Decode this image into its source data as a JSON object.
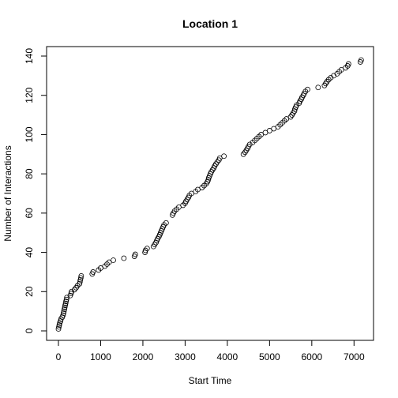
{
  "chart_data": {
    "type": "scatter",
    "title": "Location 1",
    "xlabel": "Start Time",
    "ylabel": "Number of Interactions",
    "xlim": [
      0,
      7200
    ],
    "ylim": [
      0,
      140
    ],
    "xticks": [
      0,
      1000,
      2000,
      3000,
      4000,
      5000,
      6000,
      7000
    ],
    "yticks": [
      0,
      20,
      40,
      60,
      80,
      100,
      120,
      140
    ],
    "grid": false,
    "x": [
      0,
      10,
      20,
      30,
      50,
      60,
      90,
      110,
      120,
      130,
      140,
      150,
      160,
      170,
      180,
      190,
      200,
      280,
      300,
      310,
      380,
      420,
      450,
      500,
      510,
      520,
      530,
      540,
      800,
      820,
      950,
      1000,
      1100,
      1150,
      1200,
      1300,
      1550,
      1800,
      1820,
      2050,
      2060,
      2100,
      2250,
      2280,
      2310,
      2330,
      2350,
      2380,
      2400,
      2420,
      2440,
      2460,
      2480,
      2500,
      2550,
      2700,
      2720,
      2750,
      2800,
      2850,
      2950,
      3000,
      3020,
      3050,
      3080,
      3100,
      3150,
      3250,
      3300,
      3400,
      3450,
      3500,
      3530,
      3550,
      3560,
      3580,
      3600,
      3620,
      3650,
      3680,
      3700,
      3730,
      3760,
      3800,
      3820,
      3920,
      4380,
      4420,
      4450,
      4480,
      4500,
      4530,
      4600,
      4650,
      4700,
      4750,
      4800,
      4900,
      5000,
      5100,
      5200,
      5250,
      5300,
      5350,
      5400,
      5500,
      5530,
      5560,
      5590,
      5600,
      5620,
      5640,
      5700,
      5720,
      5750,
      5770,
      5800,
      5820,
      5850,
      5900,
      6150,
      6300,
      6330,
      6360,
      6400,
      6450,
      6520,
      6600,
      6650,
      6700,
      6800,
      6850,
      6870,
      7150,
      7170
    ],
    "y": [
      1,
      2,
      3,
      4,
      5,
      6,
      7,
      8,
      9,
      10,
      11,
      12,
      13,
      14,
      15,
      16,
      17,
      18,
      19,
      20,
      21,
      22,
      23,
      24,
      25,
      26,
      27,
      28,
      29,
      30,
      31,
      32,
      33,
      34,
      35,
      36,
      37,
      38,
      39,
      40,
      41,
      42,
      43,
      44,
      45,
      46,
      47,
      48,
      49,
      50,
      51,
      52,
      53,
      54,
      55,
      59,
      60,
      61,
      62,
      63,
      64,
      65,
      66,
      67,
      68,
      69,
      70,
      71,
      72,
      73,
      74,
      75,
      76,
      77,
      78,
      79,
      80,
      81,
      82,
      83,
      84,
      85,
      86,
      87,
      88,
      89,
      90,
      91,
      92,
      93,
      94,
      95,
      96,
      97,
      98,
      99,
      100,
      101,
      102,
      103,
      104,
      105,
      106,
      107,
      108,
      109,
      110,
      111,
      112,
      113,
      114,
      115,
      116,
      117,
      118,
      119,
      120,
      121,
      122,
      123,
      124,
      125,
      126,
      127,
      128,
      129,
      130,
      131,
      132,
      133,
      134,
      135,
      136,
      137,
      138
    ]
  }
}
